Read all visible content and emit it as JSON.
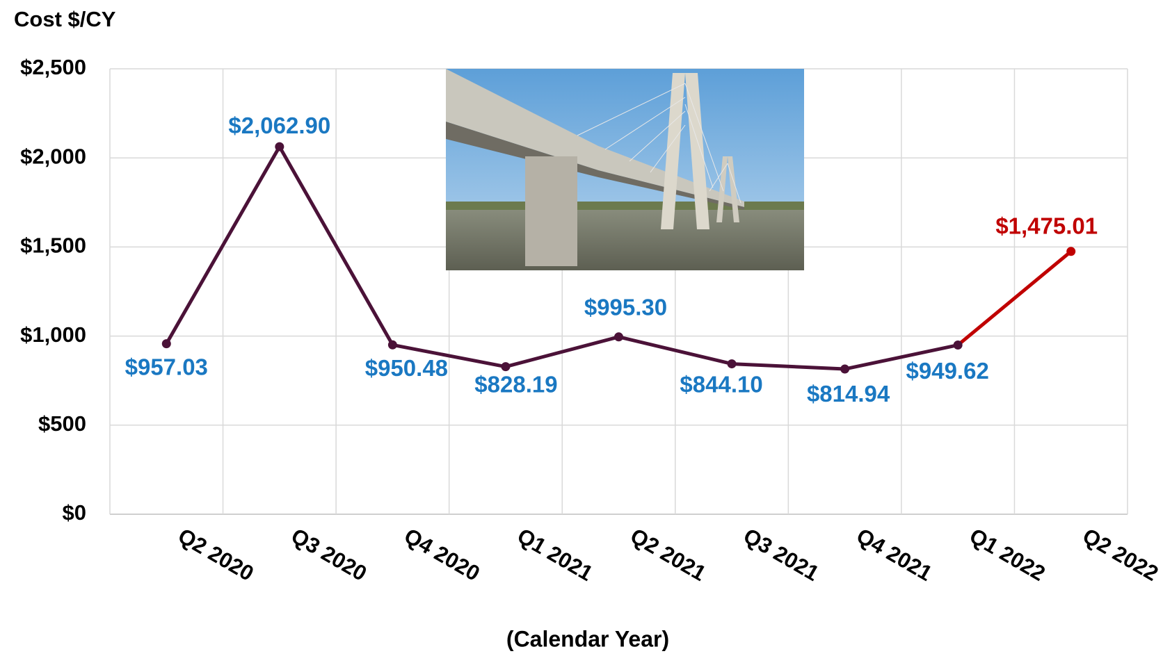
{
  "chart_data": {
    "type": "line",
    "y_axis_title": "Cost $/CY",
    "x_axis_title": "(Calendar Year)",
    "categories": [
      "Q2 2020",
      "Q3 2020",
      "Q4 2020",
      "Q1 2021",
      "Q2 2021",
      "Q3 2021",
      "Q4 2021",
      "Q1 2022",
      "Q2 2022"
    ],
    "values": [
      957.03,
      2062.9,
      950.48,
      828.19,
      995.3,
      844.1,
      814.94,
      949.62,
      1475.01
    ],
    "value_labels": [
      "$957.03",
      "$2,062.90",
      "$950.48",
      "$828.19",
      "$995.30",
      "$844.10",
      "$814.94",
      "$949.62",
      "$1,475.01"
    ],
    "point_colors": [
      "#4b1238",
      "#4b1238",
      "#4b1238",
      "#4b1238",
      "#4b1238",
      "#4b1238",
      "#4b1238",
      "#4b1238",
      "#c00000"
    ],
    "label_colors": [
      "#1a78c2",
      "#1a78c2",
      "#1a78c2",
      "#1a78c2",
      "#1a78c2",
      "#1a78c2",
      "#1a78c2",
      "#1a78c2",
      "#c00000"
    ],
    "ylim": [
      0,
      2500
    ],
    "yticks": [
      {
        "value": 0,
        "label": "$0"
      },
      {
        "value": 500,
        "label": "$500"
      },
      {
        "value": 1000,
        "label": "$1,000"
      },
      {
        "value": 1500,
        "label": "$1,500"
      },
      {
        "value": 2000,
        "label": "$2,000"
      },
      {
        "value": 2500,
        "label": "$2,500"
      }
    ],
    "grid": true
  }
}
